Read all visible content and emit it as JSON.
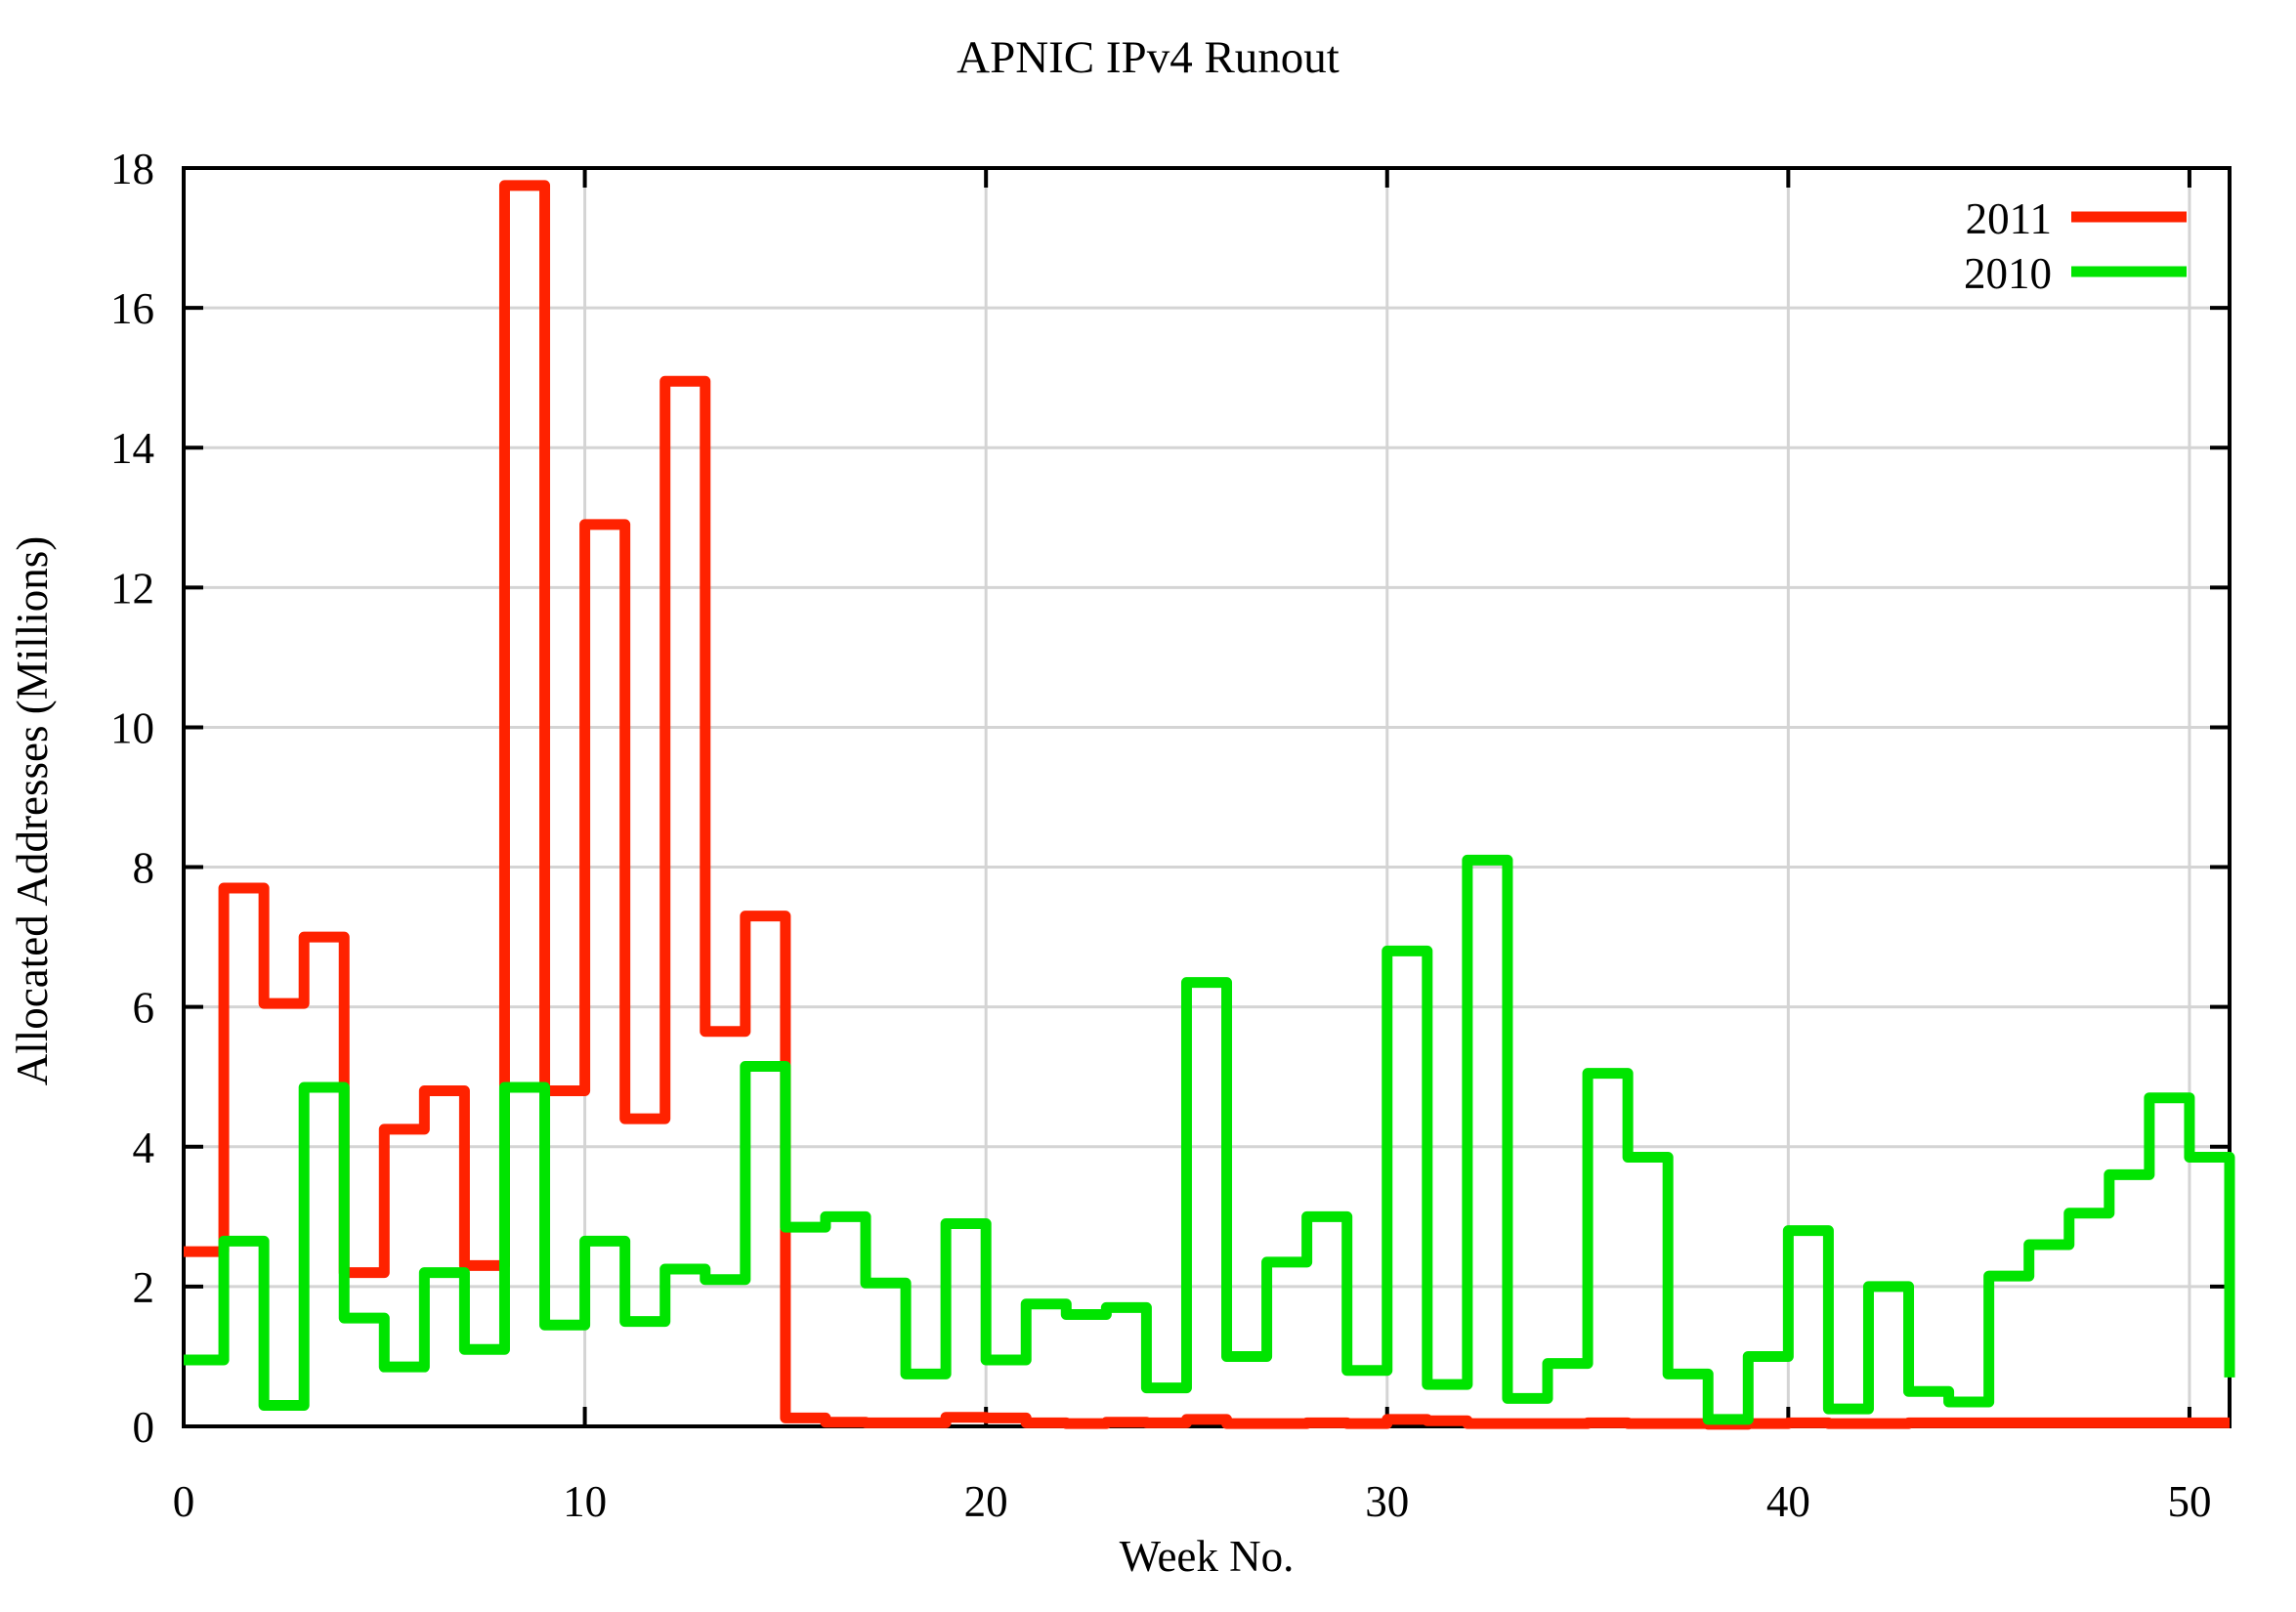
{
  "title": "APNIC IPv4 Runout",
  "axes": {
    "xlabel": "Week No.",
    "ylabel": "Allocated Addresses (Millions)",
    "xticks": [
      0,
      10,
      20,
      30,
      40,
      50
    ],
    "yticks": [
      0,
      2,
      4,
      6,
      8,
      10,
      12,
      14,
      16,
      18
    ],
    "xlim": [
      0,
      51
    ],
    "ylim": [
      0,
      18
    ]
  },
  "legend": {
    "items": [
      {
        "label": "2011",
        "color": "#ff2200"
      },
      {
        "label": "2010",
        "color": "#00e400"
      }
    ]
  },
  "style": {
    "grid_color": "#d4d4d4",
    "border_color": "#000000",
    "background": "#ffffff",
    "series_line_width": 11
  },
  "chart_data": {
    "type": "line",
    "style": "steps",
    "title": "APNIC IPv4 Runout",
    "xlabel": "Week No.",
    "ylabel": "Allocated Addresses (Millions)",
    "xlim": [
      0,
      51
    ],
    "ylim": [
      0,
      18
    ],
    "grid": true,
    "legend_position": "top-right",
    "x": [
      0,
      1,
      2,
      3,
      4,
      5,
      6,
      7,
      8,
      9,
      10,
      11,
      12,
      13,
      14,
      15,
      16,
      17,
      18,
      19,
      20,
      21,
      22,
      23,
      24,
      25,
      26,
      27,
      28,
      29,
      30,
      31,
      32,
      33,
      34,
      35,
      36,
      37,
      38,
      39,
      40,
      41,
      42,
      43,
      44,
      45,
      46,
      47,
      48,
      49,
      50,
      51
    ],
    "series": [
      {
        "name": "2011",
        "color": "#ff2200",
        "values": [
          2.5,
          7.7,
          6.05,
          7.0,
          2.2,
          4.25,
          4.8,
          2.3,
          17.75,
          4.8,
          12.9,
          4.4,
          14.95,
          5.65,
          7.3,
          0.12,
          0.06,
          0.05,
          0.05,
          0.13,
          0.12,
          0.05,
          0.04,
          0.06,
          0.05,
          0.1,
          0.04,
          0.04,
          0.05,
          0.04,
          0.1,
          0.08,
          0.04,
          0.04,
          0.04,
          0.05,
          0.04,
          0.04,
          0.03,
          0.04,
          0.05,
          0.04,
          0.04,
          0.05,
          0.05,
          0.05,
          0.05,
          0.05,
          0.05,
          0.05,
          0.05,
          0.05
        ]
      },
      {
        "name": "2010",
        "color": "#00e400",
        "values": [
          0.95,
          2.65,
          0.3,
          4.85,
          1.55,
          0.85,
          2.2,
          1.1,
          4.85,
          1.45,
          2.65,
          1.5,
          2.25,
          2.1,
          5.15,
          2.85,
          3.0,
          2.05,
          0.75,
          2.9,
          0.95,
          1.75,
          1.6,
          1.7,
          0.55,
          6.35,
          1.0,
          2.35,
          3.0,
          0.8,
          6.8,
          0.6,
          8.1,
          0.4,
          0.9,
          5.05,
          3.85,
          0.75,
          0.1,
          1.0,
          2.8,
          0.25,
          2.0,
          0.5,
          0.35,
          2.15,
          2.6,
          3.05,
          3.6,
          4.7,
          3.85,
          0.7
        ]
      }
    ]
  }
}
